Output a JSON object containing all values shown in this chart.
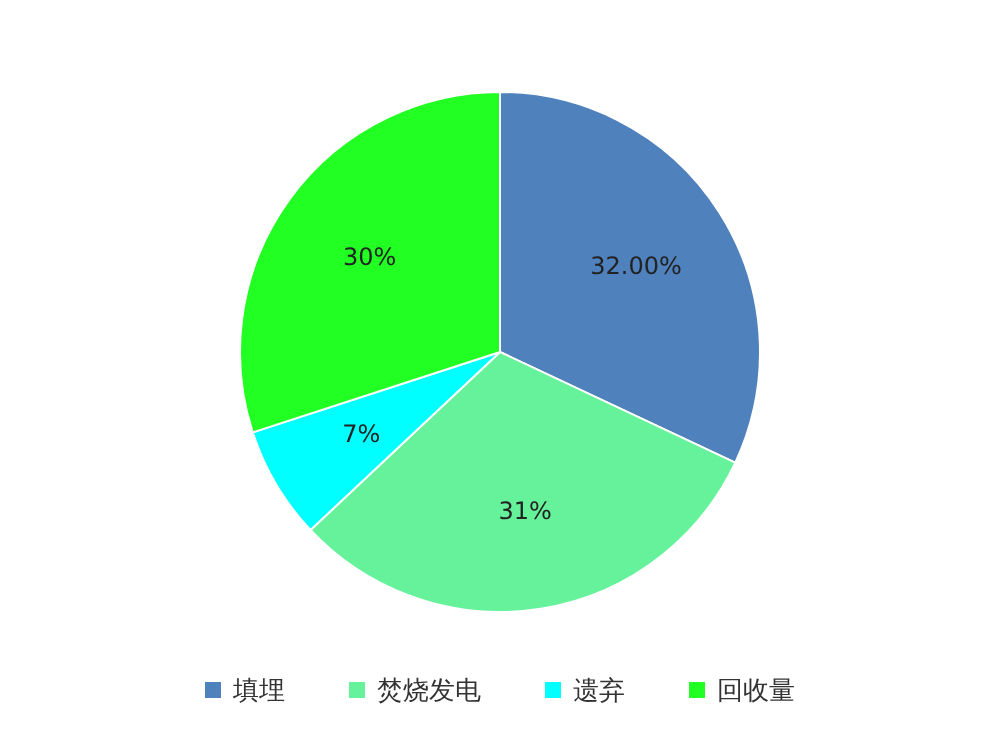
{
  "chart_data": {
    "type": "pie",
    "categories": [
      "填埋",
      "焚烧发电",
      "遗弃",
      "回收量"
    ],
    "values": [
      32,
      31,
      7,
      30
    ],
    "colors": [
      "#4f81bd",
      "#66f29a",
      "#00ffff",
      "#22ff22"
    ],
    "value_labels": [
      "32.00%",
      "31%",
      "7%",
      "30%"
    ],
    "legend": "bottom"
  }
}
